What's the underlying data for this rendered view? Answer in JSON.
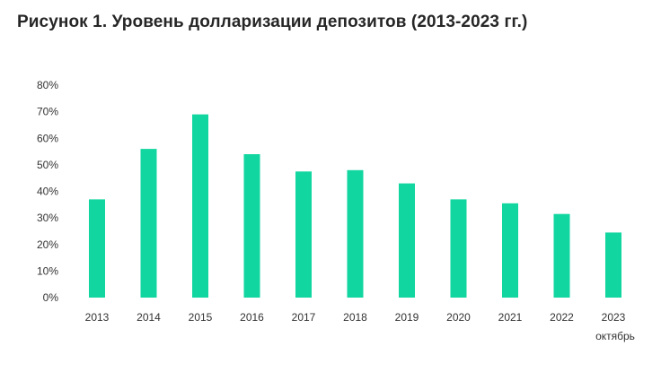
{
  "title": "Рисунок 1. Уровень долларизации депозитов (2013-2023 гг.)",
  "colors": {
    "bar": "#12d6a0",
    "text": "#333333"
  },
  "chart_data": {
    "type": "bar",
    "title": "Рисунок 1. Уровень долларизации депозитов (2013-2023 гг.)",
    "xlabel": "",
    "ylabel": "",
    "categories": [
      "2013",
      "2014",
      "2015",
      "2016",
      "2017",
      "2018",
      "2019",
      "2020",
      "2021",
      "2022",
      "2023"
    ],
    "category_sublabels": [
      "",
      "",
      "",
      "",
      "",
      "",
      "",
      "",
      "",
      "",
      "октябрь"
    ],
    "values": [
      37,
      56,
      69,
      54,
      47.5,
      48,
      43,
      37,
      35.5,
      31.5,
      24.5
    ],
    "ylim": [
      0,
      80
    ],
    "yticks": [
      0,
      10,
      20,
      30,
      40,
      50,
      60,
      70,
      80
    ],
    "ytick_labels": [
      "0%",
      "10%",
      "20%",
      "30%",
      "40%",
      "50%",
      "60%",
      "70%",
      "80%"
    ],
    "grid": false,
    "legend": "none"
  }
}
